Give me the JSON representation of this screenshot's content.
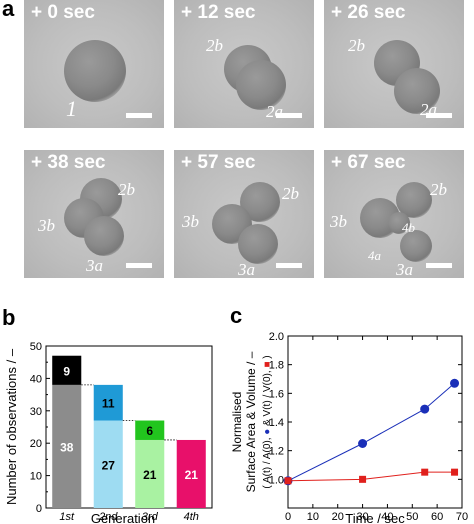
{
  "panel_a": {
    "letter": "a",
    "frames": [
      {
        "time": "+ 0 sec",
        "labels": [
          "1"
        ]
      },
      {
        "time": "+ 12 sec",
        "labels": [
          "2b",
          "2a"
        ]
      },
      {
        "time": "+ 26 sec",
        "labels": [
          "2b",
          "2a"
        ]
      },
      {
        "time": "+ 38 sec",
        "labels": [
          "2b",
          "3b",
          "3a"
        ]
      },
      {
        "time": "+ 57 sec",
        "labels": [
          "3b",
          "2b",
          "3a"
        ]
      },
      {
        "time": "+ 67 sec",
        "labels": [
          "3b",
          "2b",
          "4b",
          "4a",
          "3a"
        ]
      }
    ]
  },
  "panel_b": {
    "letter": "b",
    "chart_data": {
      "type": "bar",
      "ylabel": "Number of observations / –",
      "xlabel": "Generation",
      "ylim": [
        0,
        50
      ],
      "yticks": [
        0,
        10,
        20,
        30,
        40,
        50
      ],
      "categories": [
        "1st",
        "2nd",
        "3rd",
        "4th"
      ],
      "series": [
        {
          "values": [
            38,
            27,
            21,
            21
          ],
          "colors": [
            "#8c8c8c",
            "#9edcf2",
            "#a9f2a2",
            "#e8106a"
          ],
          "value_labels": [
            "38",
            "27",
            "21",
            "21"
          ]
        },
        {
          "values": [
            9,
            11,
            6,
            0
          ],
          "colors": [
            "#000000",
            "#1f9ad6",
            "#22c51e",
            "#e8106a"
          ],
          "value_labels": [
            "9",
            "11",
            "6",
            ""
          ]
        }
      ],
      "dotted_connectors": true
    }
  },
  "panel_c": {
    "letter": "c",
    "chart_data": {
      "type": "line",
      "xlabel": "Time / sec",
      "ylabel_line1": "Normalised",
      "ylabel_line2": "Surface Area & Volume / –",
      "ylabel_line3_parts": [
        "( A(t) / A(0), ",
        "●",
        " & V(t) / V(0), ",
        "■",
        " )"
      ],
      "xlim": [
        0,
        70
      ],
      "ylim": [
        0.8,
        2.0
      ],
      "xticks": [
        0,
        10,
        20,
        30,
        40,
        50,
        60,
        70
      ],
      "yticks": [
        0.8,
        1.0,
        1.2,
        1.4,
        1.6,
        1.8,
        2.0
      ],
      "yticklabels": [
        "",
        "1.0",
        "1.2",
        "1.4",
        "1.6",
        "1.8",
        "2.0"
      ],
      "series": [
        {
          "marker": "circle",
          "color": "#1a2fb8",
          "x": [
            0,
            30,
            55,
            67
          ],
          "y": [
            0.99,
            1.25,
            1.49,
            1.67
          ]
        },
        {
          "marker": "square",
          "color": "#e0201c",
          "x": [
            0,
            30,
            55,
            67
          ],
          "y": [
            0.99,
            1.0,
            1.05,
            1.05
          ]
        }
      ]
    }
  }
}
